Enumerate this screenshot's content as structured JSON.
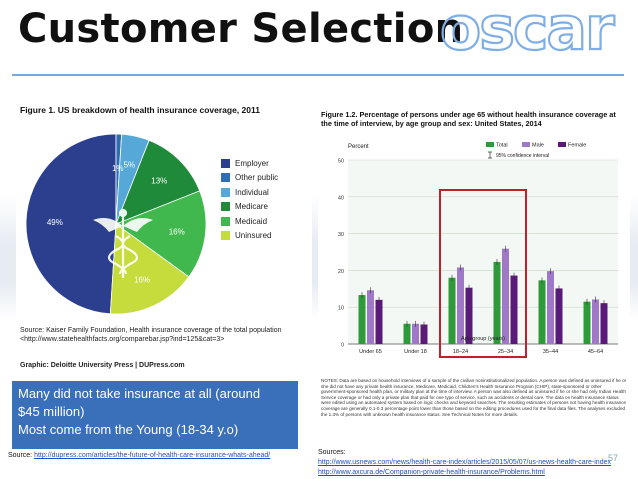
{
  "slide": {
    "title": "Customer Selection",
    "logo_text": "oscar",
    "slide_number": "57",
    "accent_color": "#7aa7d8"
  },
  "figure1": {
    "caption": "Figure 1. US breakdown of health insurance coverage, 2011",
    "source_line1": "Source: Kaiser Family Foundation, Health insurance coverage of the total population",
    "source_line2": "<http://www.statehealthfacts.org/comparebar.jsp?ind=125&cat=3>",
    "graphic_credit": "Graphic: Deloitte University Press  |  DUPress.com",
    "emblem_icon": "caduceus-icon",
    "chart_data": {
      "type": "pie",
      "title": "Figure 1. US breakdown of health insurance coverage, 2011",
      "categories": [
        "Employer",
        "Other public",
        "Individual",
        "Medicare",
        "Medicaid",
        "Uninsured"
      ],
      "values": [
        49,
        1,
        5,
        13,
        16,
        16
      ],
      "labels": [
        "49%",
        "1%",
        "5%",
        "13%",
        "16%",
        "16%"
      ],
      "colors": [
        "#2b3f8e",
        "#2e6db4",
        "#55a8d8",
        "#1f8a3a",
        "#41b84d",
        "#c6dc3c"
      ],
      "legend_position": "right"
    }
  },
  "callout": {
    "line1": "Many did not take insurance at all (around",
    "line2": "$45 million)",
    "line3": "Most come from the Young (18-34 y.o)"
  },
  "left_source": {
    "label": "Source: ",
    "url": "http://dupress.com/articles/the-future-of-health-care-insurance-whats-ahead/"
  },
  "figure2": {
    "caption_line1": "Figure 1.2. Percentage of persons under age 65 without health insurance coverage at",
    "caption_line2": "the time of interview, by age group and sex: United States, 2014",
    "ci_label": "95% confidence interval",
    "notes": "NOTES: Data are based on household interviews of a sample of the civilian noninstitutionalized population. A person was defined as uninsured if he or she did not have any private health insurance, Medicare, Medicaid, Children's Health Insurance Program (CHIP), state-sponsored or other government-sponsored health plan, or military plan at the time of interview. A person was also defined as uninsured if he or she had only Indian Health Service coverage or had only a private plan that paid for one type of service, such as accidents or dental care. The data on health insurance status were edited using an automated system based on logic checks and keyword searches. The resulting estimates of persons not having health insurance coverage are generally 0.1-0.3 percentage point lower than those based on the editing procedures used for the final data files. The analyses excluded the 1.3% of persons with unknown health insurance status. See Technical Notes for more details.",
    "chart_data": {
      "type": "bar",
      "title": "Figure 1.2. Percentage of persons under age 65 without health insurance coverage at the time of interview, by age group and sex: United States, 2014",
      "ylabel": "Percent",
      "xlabel": "Age group (years)",
      "ylim": [
        0,
        50
      ],
      "yticks": [
        0,
        10,
        20,
        30,
        40,
        50
      ],
      "categories": [
        "Under 65",
        "Under 18",
        "18–24",
        "25–34",
        "35–44",
        "45–64"
      ],
      "series": [
        {
          "name": "Total",
          "color": "#2f9a3a",
          "values": [
            13.3,
            5.5,
            18.0,
            22.3,
            17.3,
            11.5
          ]
        },
        {
          "name": "Male",
          "color": "#a078c8",
          "values": [
            14.6,
            5.5,
            20.8,
            25.9,
            19.8,
            12.1
          ]
        },
        {
          "name": "Female",
          "color": "#5a1a7a",
          "values": [
            12.0,
            5.3,
            15.3,
            18.6,
            15.1,
            11.1
          ]
        }
      ],
      "grid": true,
      "legend_position": "top-right",
      "highlight": [
        "18–24",
        "25–34"
      ],
      "highlight_color": "#c0202a"
    }
  },
  "right_sources": {
    "label": "Sources:",
    "url1": "http://www.usnews.com/news/health-care-index/articles/2015/05/07/us-news-health-care-index",
    "url2": "http://www.axcura.de/Companion-private-health-insurance/Problems.html"
  }
}
